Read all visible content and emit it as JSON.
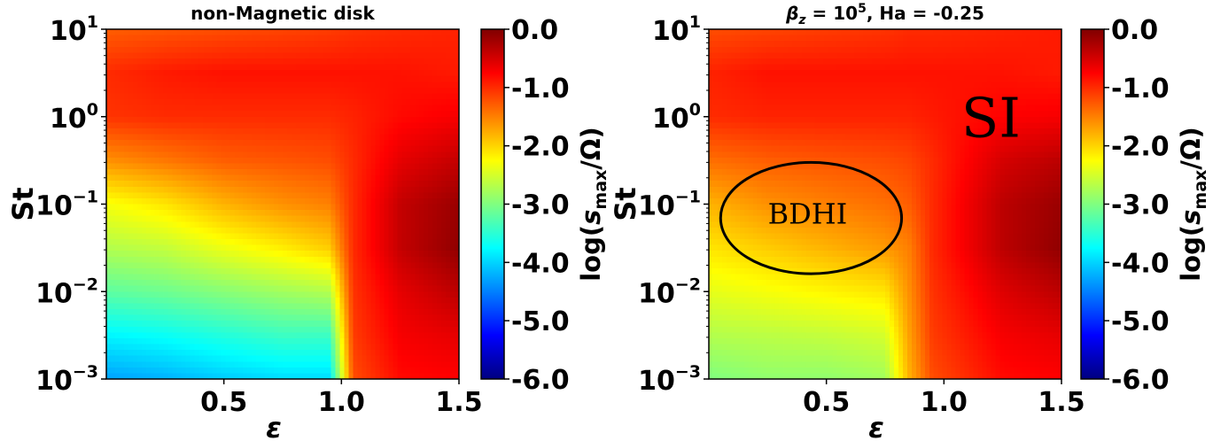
{
  "chart_data": [
    {
      "type": "heatmap",
      "title": "non-Magnetic disk",
      "xlabel": "ε",
      "ylabel": "St",
      "xlim": [
        0.0,
        1.5
      ],
      "ylim": [
        0.001,
        10
      ],
      "yscale": "log",
      "x_ticks": [
        0.5,
        1.0,
        1.5
      ],
      "x_tick_labels": [
        "0.5",
        "1.0",
        "1.5"
      ],
      "y_ticks": [
        {
          "base": "10",
          "exp": "1"
        },
        {
          "base": "10",
          "exp": "0"
        },
        {
          "base": "10",
          "exp": "−1"
        },
        {
          "base": "10",
          "exp": "−2"
        },
        {
          "base": "10",
          "exp": "−3"
        }
      ],
      "colorbar": {
        "label": "log(s_max/Ω)",
        "label_parts": [
          "log(",
          "s",
          "max",
          "/Ω)"
        ],
        "range": [
          -6.0,
          0.0
        ],
        "tick_labels": [
          "0.0",
          "-1.0",
          "-2.0",
          "-3.0",
          "-4.0",
          "-5.0",
          "-6.0"
        ],
        "colormap": "jet"
      },
      "surface": {
        "log_st": [
          1.0,
          0.5,
          0.0,
          -0.5,
          -1.0,
          -1.5,
          -2.0,
          -2.5,
          -3.0
        ],
        "epsilon": [
          0.0,
          0.25,
          0.5,
          0.75,
          0.95,
          1.05,
          1.25,
          1.5
        ],
        "values": [
          [
            -1.3,
            -1.25,
            -1.2,
            -1.15,
            -1.1,
            -1.05,
            -1.0,
            -0.95
          ],
          [
            -1.0,
            -0.9,
            -0.85,
            -0.85,
            -0.85,
            -0.85,
            -0.85,
            -0.9
          ],
          [
            -1.05,
            -1.0,
            -1.0,
            -1.0,
            -1.0,
            -0.95,
            -0.8,
            -0.7
          ],
          [
            -1.6,
            -1.45,
            -1.3,
            -1.25,
            -1.2,
            -1.0,
            -0.6,
            -0.4
          ],
          [
            -2.3,
            -2.1,
            -1.8,
            -1.6,
            -1.5,
            -1.0,
            -0.4,
            -0.15
          ],
          [
            -2.7,
            -2.6,
            -2.35,
            -2.15,
            -1.95,
            -1.0,
            -0.4,
            -0.1
          ],
          [
            -3.2,
            -3.1,
            -2.95,
            -2.8,
            -2.7,
            -1.05,
            -0.6,
            -0.35
          ],
          [
            -3.8,
            -3.7,
            -3.55,
            -3.4,
            -3.4,
            -1.1,
            -0.7,
            -0.6
          ],
          [
            -4.3,
            -4.2,
            -4.05,
            -3.95,
            -3.95,
            -1.2,
            -0.8,
            -0.75
          ]
        ]
      }
    },
    {
      "type": "heatmap",
      "title": "β_z = 10^5, Ha = -0.25",
      "title_parts": [
        "β",
        "z",
        " = 10",
        "5",
        ", Ha = -0.25"
      ],
      "xlabel": "ε",
      "ylabel": "St",
      "xlim": [
        0.0,
        1.5
      ],
      "ylim": [
        0.001,
        10
      ],
      "yscale": "log",
      "x_ticks": [
        0.5,
        1.0,
        1.5
      ],
      "x_tick_labels": [
        "0.5",
        "1.0",
        "1.5"
      ],
      "y_ticks": [
        {
          "base": "10",
          "exp": "1"
        },
        {
          "base": "10",
          "exp": "0"
        },
        {
          "base": "10",
          "exp": "−1"
        },
        {
          "base": "10",
          "exp": "−2"
        },
        {
          "base": "10",
          "exp": "−3"
        }
      ],
      "annotations": [
        {
          "text": "SI",
          "x": 1.2,
          "st": 0.9
        },
        {
          "text": "BDHI",
          "x": 0.42,
          "st": 0.06,
          "ellipse": {
            "x_range": [
              0.05,
              0.82
            ],
            "st_range": [
              0.016,
              0.3
            ]
          }
        }
      ],
      "colorbar": {
        "label": "log(s_max/Ω)",
        "label_parts": [
          "log(",
          "s",
          "max",
          "/Ω)"
        ],
        "range": [
          -6.0,
          0.0
        ],
        "tick_labels": [
          "0.0",
          "-1.0",
          "-2.0",
          "-3.0",
          "-4.0",
          "-5.0",
          "-6.0"
        ],
        "colormap": "jet"
      },
      "surface": {
        "log_st": [
          1.0,
          0.5,
          0.0,
          -0.5,
          -1.0,
          -1.5,
          -2.0,
          -2.5,
          -3.0
        ],
        "epsilon": [
          0.0,
          0.25,
          0.5,
          0.75,
          0.85,
          0.95,
          1.25,
          1.5
        ],
        "values": [
          [
            -1.2,
            -1.15,
            -1.1,
            -1.05,
            -1.0,
            -1.0,
            -0.95,
            -0.9
          ],
          [
            -0.95,
            -0.85,
            -0.85,
            -0.85,
            -0.85,
            -0.85,
            -0.85,
            -0.9
          ],
          [
            -1.0,
            -0.95,
            -0.95,
            -0.95,
            -0.95,
            -0.9,
            -0.75,
            -0.7
          ],
          [
            -1.4,
            -1.3,
            -1.25,
            -1.2,
            -1.15,
            -1.0,
            -0.5,
            -0.35
          ],
          [
            -1.8,
            -1.6,
            -1.5,
            -1.4,
            -1.3,
            -1.0,
            -0.35,
            -0.15
          ],
          [
            -2.1,
            -1.95,
            -1.8,
            -1.65,
            -1.5,
            -1.0,
            -0.35,
            -0.1
          ],
          [
            -2.4,
            -2.3,
            -2.2,
            -2.1,
            -1.6,
            -1.05,
            -0.55,
            -0.35
          ],
          [
            -2.7,
            -2.65,
            -2.6,
            -2.5,
            -1.7,
            -1.1,
            -0.7,
            -0.6
          ],
          [
            -3.0,
            -2.9,
            -2.9,
            -2.8,
            -1.8,
            -1.2,
            -0.8,
            -0.75
          ]
        ]
      }
    }
  ]
}
